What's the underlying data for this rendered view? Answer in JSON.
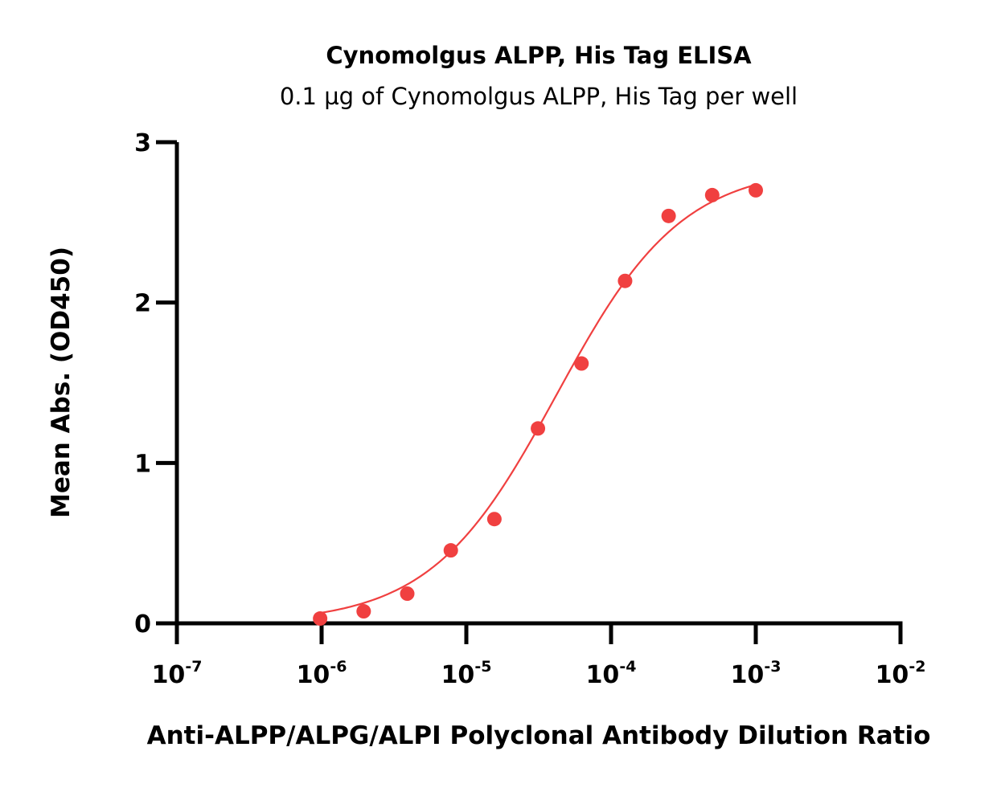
{
  "chart_data": {
    "type": "scatter",
    "title": "Cynomolgus ALPP, His Tag ELISA",
    "subtitle": "0.1 µg of Cynomolgus ALPP, His Tag per well",
    "xlabel": "Anti-ALPP/ALPG/ALPI Polyclonal Antibody Dilution Ratio",
    "ylabel": "Mean Abs. (OD450)",
    "x_scale": "log",
    "xlim": [
      1e-07,
      0.01
    ],
    "ylim": [
      0,
      3
    ],
    "x_ticks": [
      {
        "value": 1e-07,
        "base": "10",
        "exp": "-7"
      },
      {
        "value": 1e-06,
        "base": "10",
        "exp": "-6"
      },
      {
        "value": 1e-05,
        "base": "10",
        "exp": "-5"
      },
      {
        "value": 0.0001,
        "base": "10",
        "exp": "-4"
      },
      {
        "value": 0.001,
        "base": "10",
        "exp": "-3"
      },
      {
        "value": 0.01,
        "base": "10",
        "exp": "-2"
      }
    ],
    "y_ticks": [
      "0",
      "1",
      "2",
      "3"
    ],
    "grid": false,
    "colors": {
      "series": "#f04040",
      "axis": "#000000"
    },
    "series": [
      {
        "x": [
          9.766e-07,
          1.953e-06,
          3.906e-06,
          7.813e-06,
          1.5625e-05,
          3.125e-05,
          6.25e-05,
          0.000125,
          0.00025,
          0.0005,
          0.001
        ],
        "y": [
          0.03,
          0.075,
          0.185,
          0.455,
          0.65,
          1.215,
          1.62,
          2.135,
          2.54,
          2.67,
          2.7
        ]
      }
    ],
    "fit": {
      "model": "4PL",
      "bottom": 0.0,
      "top": 2.85,
      "ec50": 4.2e-05,
      "hill": 1.0
    }
  }
}
